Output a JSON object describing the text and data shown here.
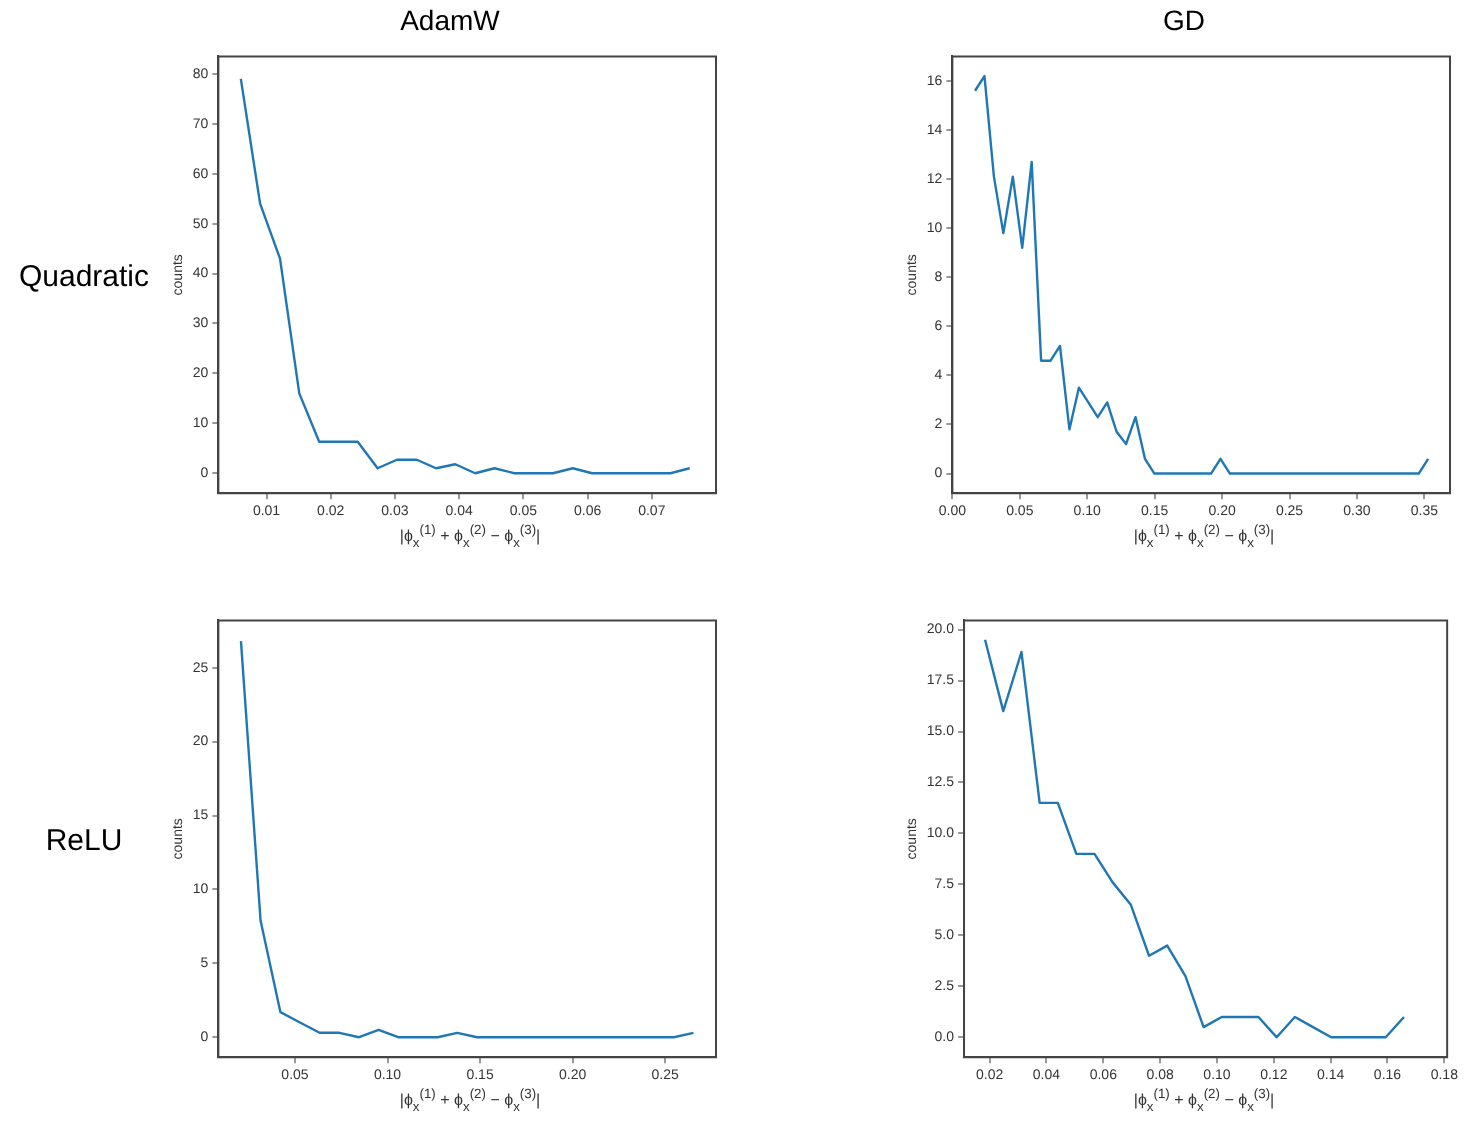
{
  "chart_data": [
    {
      "type": "line",
      "title": "AdamW",
      "annotations": [
        "Quadratic"
      ],
      "xlabel": "|ϕ$_{x}$$^{(1)}$ + ϕ$_{x}$$^{(2)}$ − ϕ$_{x}$$^{(3)}$|",
      "ylabel": "counts",
      "x": [
        0.006,
        0.009,
        0.0121,
        0.0151,
        0.0182,
        0.0212,
        0.0242,
        0.0273,
        0.0303,
        0.0334,
        0.0364,
        0.0394,
        0.0425,
        0.0455,
        0.0486,
        0.0516,
        0.0546,
        0.0577,
        0.0607,
        0.0638,
        0.0668,
        0.0698,
        0.0729,
        0.0759
      ],
      "series": [
        {
          "color": "#1f77b4",
          "values": [
            79,
            54,
            43,
            16,
            6.3,
            6.3,
            6.3,
            1,
            2.7,
            2.7,
            1,
            1.8,
            0,
            1,
            0,
            0,
            0,
            1,
            0,
            0,
            0,
            0,
            0,
            1
          ]
        }
      ],
      "xlim": [
        0.0025,
        0.08
      ],
      "ylim": [
        -4,
        83.5
      ],
      "xticks": [
        0.01,
        0.02,
        0.03,
        0.04,
        0.05,
        0.06,
        0.07
      ],
      "yticks": [
        0,
        10,
        20,
        30,
        40,
        50,
        60,
        70,
        80
      ]
    },
    {
      "type": "line",
      "title": "GD",
      "xlabel": "|ϕ$_{x}$$^{(1)}$ + ϕ$_{x}$$^{(2)}$ − ϕ$_{x}$$^{(3)}$|",
      "ylabel": "counts",
      "x": [
        0.0168,
        0.0238,
        0.0308,
        0.0378,
        0.0448,
        0.0518,
        0.0588,
        0.0658,
        0.0728,
        0.0798,
        0.0868,
        0.0938,
        0.1008,
        0.1078,
        0.1148,
        0.1218,
        0.1288,
        0.1358,
        0.1428,
        0.1498,
        0.1568,
        0.1638,
        0.1708,
        0.1778,
        0.1848,
        0.1918,
        0.1988,
        0.2058,
        0.2128,
        0.2198,
        0.2268,
        0.2338,
        0.2408,
        0.2478,
        0.2548,
        0.2618,
        0.2688,
        0.2758,
        0.2828,
        0.2898,
        0.2968,
        0.3038,
        0.3108,
        0.3178,
        0.3248,
        0.3318,
        0.3388,
        0.3458,
        0.3528
      ],
      "series": [
        {
          "color": "#1f77b4",
          "values": [
            15.6,
            16.2,
            12.1,
            9.8,
            12.1,
            9.2,
            12.7,
            4.6,
            4.6,
            5.2,
            1.8,
            3.5,
            2.9,
            2.3,
            2.9,
            1.7,
            1.2,
            2.3,
            0.6,
            0,
            0,
            0,
            0,
            0,
            0,
            0,
            0.6,
            0,
            0,
            0,
            0,
            0,
            0,
            0,
            0,
            0,
            0,
            0,
            0,
            0,
            0,
            0,
            0,
            0,
            0,
            0,
            0,
            0,
            0.6
          ]
        }
      ],
      "xlim": [
        0,
        0.369
      ],
      "ylim": [
        -0.8,
        17
      ],
      "xticks": [
        {
          "value": 0,
          "label": "0.00"
        },
        {
          "value": 0.05,
          "label": "0.05"
        },
        {
          "value": 0.1,
          "label": "0.10"
        },
        {
          "value": 0.15,
          "label": "0.15"
        },
        {
          "value": 0.2,
          "label": "0.20"
        },
        {
          "value": 0.25,
          "label": "0.25"
        },
        {
          "value": 0.3,
          "label": "0.30"
        },
        {
          "value": 0.35,
          "label": "0.35"
        }
      ],
      "yticks": [
        0,
        2,
        4,
        6,
        8,
        10,
        12,
        14,
        16
      ]
    },
    {
      "type": "line",
      "annotations": [
        "ReLU"
      ],
      "xlabel": "|ϕ$_{x}$$^{(1)}$ + ϕ$_{x}$$^{(2)}$ − ϕ$_{x}$$^{(3)}$|",
      "ylabel": "counts",
      "x": [
        0.0208,
        0.0314,
        0.0421,
        0.0527,
        0.0633,
        0.074,
        0.0846,
        0.0952,
        0.1058,
        0.1165,
        0.1271,
        0.1377,
        0.1484,
        0.159,
        0.1696,
        0.1803,
        0.1909,
        0.2015,
        0.2121,
        0.2228,
        0.2334,
        0.244,
        0.2547,
        0.2653
      ],
      "series": [
        {
          "color": "#1f77b4",
          "values": [
            26.8,
            7.9,
            1.7,
            1.0,
            0.3,
            0.3,
            0,
            0.5,
            0,
            0,
            0,
            0.3,
            0,
            0,
            0,
            0,
            0,
            0,
            0,
            0,
            0,
            0,
            0,
            0.3
          ]
        }
      ],
      "xlim": [
        0.0086,
        0.2775
      ],
      "ylim": [
        -1.35,
        28.2
      ],
      "xticks": [
        0.05,
        {
          "value": 0.1,
          "label": "0.10"
        },
        0.15,
        {
          "value": 0.2,
          "label": "0.20"
        },
        0.25
      ],
      "yticks": [
        0,
        5,
        10,
        15,
        20,
        25
      ]
    },
    {
      "type": "line",
      "xlabel": "|ϕ$_{x}$$^{(1)}$ + ϕ$_{x}$$^{(2)}$ − ϕ$_{x}$$^{(3)}$|",
      "ylabel": "counts",
      "x": [
        0.0184,
        0.0248,
        0.0312,
        0.0376,
        0.044,
        0.0505,
        0.0569,
        0.0633,
        0.0697,
        0.0761,
        0.0825,
        0.0889,
        0.0953,
        0.1017,
        0.1081,
        0.1146,
        0.121,
        0.1274,
        0.1338,
        0.1402,
        0.1466,
        0.153,
        0.1594,
        0.1658
      ],
      "series": [
        {
          "color": "#1f77b4",
          "values": [
            19.5,
            16,
            18.9,
            11.5,
            11.5,
            9,
            9,
            7.6,
            6.5,
            4,
            4.5,
            3,
            0.5,
            1,
            1,
            1,
            0,
            1,
            0.5,
            0,
            0,
            0,
            0,
            1
          ]
        }
      ],
      "xlim": [
        0.011,
        0.181
      ],
      "ylim": [
        -0.975,
        20.45
      ],
      "xticks": [
        0.02,
        0.04,
        0.06,
        0.08,
        {
          "value": 0.1,
          "label": "0.10"
        },
        0.12,
        0.14,
        0.16,
        0.18
      ],
      "yticks": [
        {
          "value": 0,
          "label": "0.0"
        },
        {
          "value": 2.5,
          "label": "2.5"
        },
        {
          "value": 5,
          "label": "5.0"
        },
        {
          "value": 7.5,
          "label": "7.5"
        },
        {
          "value": 10,
          "label": "10.0"
        },
        {
          "value": 12.5,
          "label": "12.5"
        },
        {
          "value": 15,
          "label": "15.0"
        },
        {
          "value": 17.5,
          "label": "17.5"
        },
        {
          "value": 20,
          "label": "20.0"
        }
      ]
    }
  ]
}
